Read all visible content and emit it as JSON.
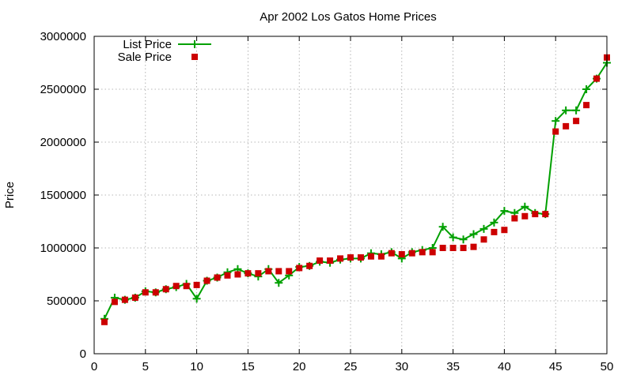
{
  "chart_data": {
    "type": "line",
    "title": "Apr 2002 Los Gatos Home Prices",
    "xlabel": "",
    "ylabel": "Price",
    "xlim": [
      0,
      50
    ],
    "ylim": [
      0,
      3000000
    ],
    "xticks": [
      0,
      5,
      10,
      15,
      20,
      25,
      30,
      35,
      40,
      45,
      50
    ],
    "yticks": [
      0,
      500000,
      1000000,
      1500000,
      2000000,
      2500000,
      3000000
    ],
    "grid": true,
    "legend_position": "top-left",
    "x": [
      1,
      2,
      3,
      4,
      5,
      6,
      7,
      8,
      9,
      10,
      11,
      12,
      13,
      14,
      15,
      16,
      17,
      18,
      19,
      20,
      21,
      22,
      23,
      24,
      25,
      26,
      27,
      28,
      29,
      30,
      31,
      32,
      33,
      34,
      35,
      36,
      37,
      38,
      39,
      40,
      41,
      42,
      43,
      44,
      45,
      46,
      47,
      48,
      49,
      50
    ],
    "series": [
      {
        "name": "List Price",
        "style": "linespoints",
        "color": "#00a000",
        "marker": "plus",
        "values": [
          330000,
          530000,
          510000,
          530000,
          590000,
          580000,
          610000,
          630000,
          660000,
          520000,
          690000,
          720000,
          770000,
          800000,
          760000,
          730000,
          800000,
          670000,
          740000,
          820000,
          830000,
          870000,
          860000,
          890000,
          900000,
          900000,
          950000,
          940000,
          960000,
          900000,
          960000,
          980000,
          1000000,
          1200000,
          1100000,
          1080000,
          1130000,
          1180000,
          1240000,
          1350000,
          1330000,
          1390000,
          1330000,
          1320000,
          2200000,
          2300000,
          2300000,
          2500000,
          2600000,
          2750000
        ]
      },
      {
        "name": "Sale Price",
        "style": "points",
        "color": "#cc0000",
        "marker": "square",
        "values": [
          300000,
          490000,
          510000,
          530000,
          580000,
          580000,
          610000,
          640000,
          640000,
          650000,
          690000,
          720000,
          740000,
          750000,
          760000,
          760000,
          780000,
          780000,
          780000,
          810000,
          830000,
          880000,
          880000,
          900000,
          910000,
          910000,
          920000,
          920000,
          950000,
          940000,
          950000,
          960000,
          960000,
          1000000,
          1000000,
          1000000,
          1010000,
          1080000,
          1150000,
          1170000,
          1280000,
          1300000,
          1320000,
          1320000,
          2100000,
          2150000,
          2200000,
          2350000,
          2600000,
          2800000
        ]
      }
    ]
  }
}
